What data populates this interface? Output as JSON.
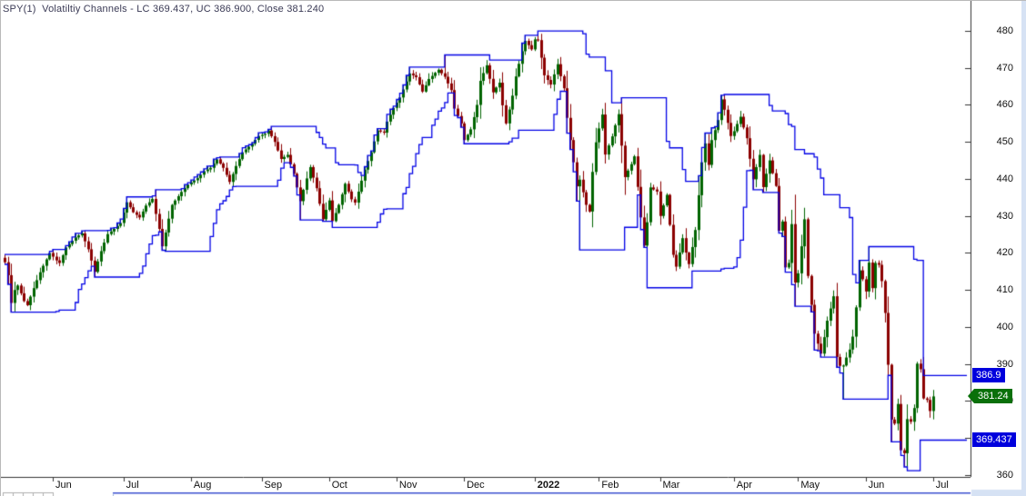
{
  "window": {
    "title": "SPY(1)  Volatiltiy Channels - LC 369.437, UC 386.900, Close 381.240"
  },
  "colors": {
    "up": "#006400",
    "down": "#8b0000",
    "channel": "#0202e6",
    "axis": "#333333",
    "title_text": "#3a3a55",
    "tag_blue": "#0000dd",
    "tag_green": "#0a700a",
    "scroll_strip": "#d6e2f4",
    "pane_divider_blue": "#3b4fd0",
    "mini_cell_border": "#b0b0b0"
  },
  "chart_data": {
    "type": "candlestick",
    "title": "SPY(1) Volatiltiy Channels",
    "symbol": "SPY",
    "study": "Volatility Channels",
    "close_last": 381.24,
    "upper_channel_last": 386.9,
    "lower_channel_last": 369.437,
    "y_axis": {
      "ticks": [
        480,
        470,
        460,
        450,
        440,
        430,
        420,
        410,
        400,
        390,
        380,
        370,
        360
      ],
      "min": 356,
      "max": 484
    },
    "x_axis": {
      "months": [
        {
          "label": "Jun",
          "bar": 15
        },
        {
          "label": "Jul",
          "bar": 37
        },
        {
          "label": "Aug",
          "bar": 58
        },
        {
          "label": "Sep",
          "bar": 80
        },
        {
          "label": "Oct",
          "bar": 101
        },
        {
          "label": "Nov",
          "bar": 122
        },
        {
          "label": "Dec",
          "bar": 143
        },
        {
          "label": "2022",
          "bar": 165,
          "bold": true
        },
        {
          "label": "Feb",
          "bar": 185
        },
        {
          "label": "Mar",
          "bar": 204
        },
        {
          "label": "Apr",
          "bar": 227
        },
        {
          "label": "May",
          "bar": 247
        },
        {
          "label": "Jun",
          "bar": 268
        },
        {
          "label": "Jul",
          "bar": 289
        }
      ]
    },
    "bars_total": 290,
    "projection_bars": 10,
    "channel_window": 14,
    "close_anchors": [
      [
        0,
        417.5
      ],
      [
        1,
        414.0
      ],
      [
        2,
        406.5
      ],
      [
        3,
        410.0
      ],
      [
        4,
        411.2
      ],
      [
        6,
        407.0
      ],
      [
        7,
        405.9
      ],
      [
        9,
        410.5
      ],
      [
        11,
        414.8
      ],
      [
        14,
        420.0
      ],
      [
        16,
        418.0
      ],
      [
        17,
        417.3
      ],
      [
        19,
        421.5
      ],
      [
        22,
        424.2
      ],
      [
        24,
        425.3
      ],
      [
        26,
        421.0
      ],
      [
        28,
        414.9
      ],
      [
        30,
        420.5
      ],
      [
        32,
        425.1
      ],
      [
        34,
        426.5
      ],
      [
        36,
        428.1
      ],
      [
        38,
        433.7
      ],
      [
        40,
        431.0
      ],
      [
        42,
        429.6
      ],
      [
        44,
        432.8
      ],
      [
        46,
        434.6
      ],
      [
        48,
        426.5
      ],
      [
        49,
        421.8
      ],
      [
        52,
        433.0
      ],
      [
        55,
        436.5
      ],
      [
        57,
        438.5
      ],
      [
        60,
        440.2
      ],
      [
        62,
        442.1
      ],
      [
        64,
        443.0
      ],
      [
        66,
        445.3
      ],
      [
        68,
        443.0
      ],
      [
        70,
        439.2
      ],
      [
        72,
        443.5
      ],
      [
        74,
        447.2
      ],
      [
        77,
        449.5
      ],
      [
        79,
        451.6
      ],
      [
        81,
        452.2
      ],
      [
        82,
        453.1
      ],
      [
        84,
        450.0
      ],
      [
        86,
        445.4
      ],
      [
        88,
        446.5
      ],
      [
        90,
        441.4
      ],
      [
        92,
        434.0
      ],
      [
        95,
        443.2
      ],
      [
        97,
        437.5
      ],
      [
        99,
        429.1
      ],
      [
        101,
        434.2
      ],
      [
        102,
        428.6
      ],
      [
        104,
        433.0
      ],
      [
        106,
        438.7
      ],
      [
        108,
        434.5
      ],
      [
        109,
        433.6
      ],
      [
        112,
        442.5
      ],
      [
        114,
        447.2
      ],
      [
        116,
        453.1
      ],
      [
        118,
        452.5
      ],
      [
        119,
        455.5
      ],
      [
        121,
        459.2
      ],
      [
        123,
        462.0
      ],
      [
        126,
        468.5
      ],
      [
        128,
        467.5
      ],
      [
        130,
        463.6
      ],
      [
        132,
        467.0
      ],
      [
        135,
        469.5
      ],
      [
        137,
        467.6
      ],
      [
        139,
        464.0
      ],
      [
        140,
        459.0
      ],
      [
        142,
        455.0
      ],
      [
        143,
        450.5
      ],
      [
        145,
        453.4
      ],
      [
        147,
        460.0
      ],
      [
        148,
        466.5
      ],
      [
        150,
        470.7
      ],
      [
        152,
        463.4
      ],
      [
        154,
        466.0
      ],
      [
        155,
        459.9
      ],
      [
        156,
        455.0
      ],
      [
        158,
        462.5
      ],
      [
        159,
        467.7
      ],
      [
        161,
        474.5
      ],
      [
        162,
        477.3
      ],
      [
        164,
        475.0
      ],
      [
        165,
        477.7
      ],
      [
        166,
        477.5
      ],
      [
        168,
        468.0
      ],
      [
        170,
        465.5
      ],
      [
        172,
        471.0
      ],
      [
        174,
        464.5
      ],
      [
        175,
        456.5
      ],
      [
        177,
        444.5
      ],
      [
        178,
        438.0
      ],
      [
        179,
        439.8
      ],
      [
        181,
        433.0
      ],
      [
        182,
        431.2
      ],
      [
        183,
        441.9
      ],
      [
        184,
        449.9
      ],
      [
        186,
        457.4
      ],
      [
        187,
        446.6
      ],
      [
        189,
        451.5
      ],
      [
        191,
        457.5
      ],
      [
        193,
        440.5
      ],
      [
        195,
        444.0
      ],
      [
        196,
        446.1
      ],
      [
        198,
        429.6
      ],
      [
        199,
        422.0
      ],
      [
        200,
        428.3
      ],
      [
        201,
        437.7
      ],
      [
        203,
        436.6
      ],
      [
        204,
        430.0
      ],
      [
        206,
        435.7
      ],
      [
        208,
        419.5
      ],
      [
        209,
        416.3
      ],
      [
        211,
        424.0
      ],
      [
        212,
        420.1
      ],
      [
        213,
        417.0
      ],
      [
        215,
        426.2
      ],
      [
        216,
        435.6
      ],
      [
        217,
        444.5
      ],
      [
        218,
        449.6
      ],
      [
        219,
        443.8
      ],
      [
        220,
        450.5
      ],
      [
        222,
        455.9
      ],
      [
        223,
        461.5
      ],
      [
        224,
        458.7
      ],
      [
        226,
        451.6
      ],
      [
        227,
        452.9
      ],
      [
        229,
        456.8
      ],
      [
        231,
        451.0
      ],
      [
        233,
        439.9
      ],
      [
        235,
        446.5
      ],
      [
        236,
        437.8
      ],
      [
        238,
        445.0
      ],
      [
        240,
        438.1
      ],
      [
        241,
        426.0
      ],
      [
        242,
        428.5
      ],
      [
        243,
        416.1
      ],
      [
        244,
        417.3
      ],
      [
        245,
        427.8
      ],
      [
        246,
        412.0
      ],
      [
        247,
        414.5
      ],
      [
        249,
        429.1
      ],
      [
        250,
        413.8
      ],
      [
        252,
        398.2
      ],
      [
        254,
        392.8
      ],
      [
        256,
        401.7
      ],
      [
        258,
        408.3
      ],
      [
        259,
        391.9
      ],
      [
        260,
        389.5
      ],
      [
        261,
        389.6
      ],
      [
        263,
        393.9
      ],
      [
        264,
        397.4
      ],
      [
        265,
        405.3
      ],
      [
        266,
        415.3
      ],
      [
        267,
        412.9
      ],
      [
        268,
        409.6
      ],
      [
        269,
        417.4
      ],
      [
        270,
        410.5
      ],
      [
        271,
        417.3
      ],
      [
        272,
        416.8
      ],
      [
        273,
        412.4
      ],
      [
        274,
        403.8
      ],
      [
        275,
        389.8
      ],
      [
        276,
        375.0
      ],
      [
        277,
        373.9
      ],
      [
        278,
        379.2
      ],
      [
        279,
        366.7
      ],
      [
        280,
        365.9
      ],
      [
        281,
        375.1
      ],
      [
        282,
        374.4
      ],
      [
        283,
        378.1
      ],
      [
        284,
        390.1
      ],
      [
        285,
        388.6
      ],
      [
        286,
        380.7
      ],
      [
        287,
        380.3
      ],
      [
        288,
        377.3
      ],
      [
        289,
        381.24
      ]
    ],
    "wick_overrides": {
      "2": {
        "low": 404.0
      },
      "92": {
        "low": 428.9
      },
      "137": {
        "high": 473.5
      },
      "162": {
        "high": 478.8
      },
      "166": {
        "high": 479.98
      },
      "179": {
        "low": 420.8
      },
      "200": {
        "low": 410.6
      },
      "209": {
        "low": 415.1
      },
      "223": {
        "high": 462.6
      },
      "261": {
        "low": 380.5
      },
      "280": {
        "low": 362.2
      },
      "284": {
        "high": 390.6
      }
    }
  },
  "axis_tags": [
    {
      "name": "upper-channel",
      "text": "386.9",
      "price": 386.9,
      "style": "rect",
      "colorKey": "tag_blue"
    },
    {
      "name": "close",
      "text": "381.24",
      "price": 381.24,
      "style": "arrow",
      "colorKey": "tag_green"
    },
    {
      "name": "lower-channel",
      "text": "369.437",
      "price": 369.437,
      "style": "rect",
      "colorKey": "tag_blue"
    }
  ]
}
